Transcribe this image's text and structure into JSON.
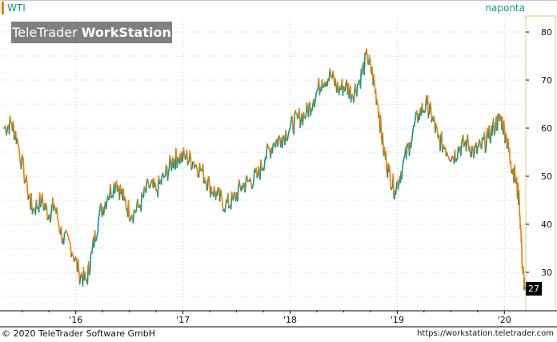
{
  "header": {
    "symbol": "WTI",
    "interval": "naponta",
    "logo_regular": "TeleTrader",
    "logo_bold": "WorkStation"
  },
  "footer": {
    "copyright": "© 2020 TeleTrader Software GmbH",
    "url": "https://workstation.teletrader.com"
  },
  "colors": {
    "up": "#0a9a8a",
    "down": "#f77b00",
    "grid": "#c8c8c8",
    "axis_frame": "#e0c870"
  },
  "chart_data": {
    "type": "line",
    "title": "WTI",
    "xlabel": "",
    "ylabel": "",
    "ylim": [
      22,
      83
    ],
    "xlim": [
      2015.33,
      2020.2
    ],
    "grid": true,
    "legend": "none",
    "x_ticks": [
      {
        "value": 2016.0,
        "label": "'16"
      },
      {
        "value": 2017.0,
        "label": "'17"
      },
      {
        "value": 2018.0,
        "label": "'18"
      },
      {
        "value": 2019.0,
        "label": "'19"
      },
      {
        "value": 2020.0,
        "label": "'20"
      }
    ],
    "y_ticks": [
      30,
      40,
      50,
      60,
      70,
      80
    ],
    "last_value": "27",
    "series": [
      {
        "x": [
          2015.33,
          2015.4,
          2015.45,
          2015.55,
          2015.6,
          2015.68,
          2015.75,
          2015.8,
          2015.88,
          2015.95,
          2016.03,
          2016.1,
          2016.15,
          2016.22,
          2016.3,
          2016.38,
          2016.45,
          2016.52,
          2016.6,
          2016.68,
          2016.75,
          2016.83,
          2016.9,
          2016.95,
          2017.03,
          2017.1,
          2017.18,
          2017.25,
          2017.32,
          2017.4,
          2017.47,
          2017.55,
          2017.62,
          2017.7,
          2017.77,
          2017.85,
          2017.92,
          2018.0,
          2018.07,
          2018.15,
          2018.22,
          2018.3,
          2018.38,
          2018.45,
          2018.52,
          2018.58,
          2018.65,
          2018.72,
          2018.77,
          2018.82,
          2018.87,
          2018.92,
          2018.98,
          2019.05,
          2019.12,
          2019.2,
          2019.28,
          2019.33,
          2019.38,
          2019.45,
          2019.52,
          2019.58,
          2019.65,
          2019.72,
          2019.78,
          2019.85,
          2019.92,
          2019.97,
          2020.02,
          2020.06,
          2020.1,
          2020.14,
          2020.17,
          2020.19
        ],
        "values": [
          60,
          61,
          58,
          47,
          43,
          45,
          42,
          44,
          37,
          36,
          30,
          28,
          34,
          42,
          46,
          49,
          45,
          42,
          44,
          48,
          47,
          50,
          53,
          54,
          54,
          53,
          51,
          48,
          46,
          44,
          45,
          48,
          49,
          50,
          54,
          57,
          58,
          60,
          62,
          63,
          66,
          70,
          71,
          68,
          69,
          67,
          70,
          75,
          71,
          65,
          56,
          51,
          47,
          52,
          57,
          63,
          65,
          62,
          58,
          56,
          54,
          56,
          57,
          55,
          56,
          58,
          61,
          62,
          58,
          53,
          50,
          45,
          31,
          27
        ]
      }
    ]
  }
}
